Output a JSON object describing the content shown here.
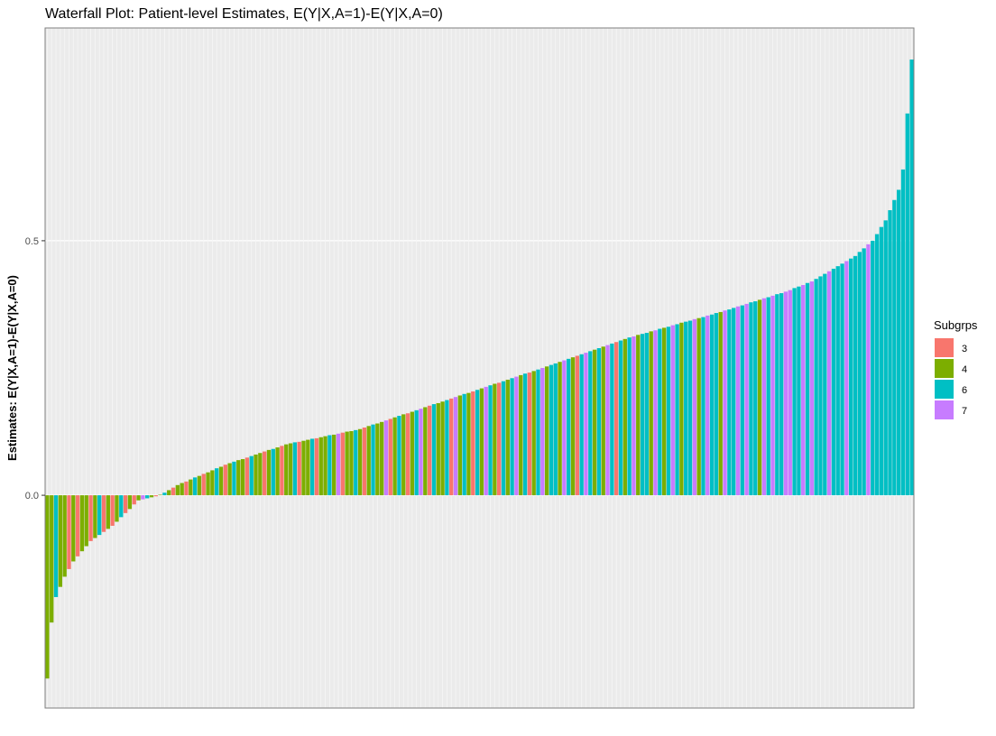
{
  "chart_data": {
    "type": "bar",
    "title": "Waterfall Plot: Patient-level Estimates, E(Y|X,A=1)-E(Y|X,A=0)",
    "xlabel": "",
    "ylabel": "Estimates: E(Y|X,A=1)-E(Y|X,A=0)",
    "ylim": [
      -0.418,
      0.918
    ],
    "yticks": [
      0.0,
      0.5
    ],
    "ytick_labels": [
      "0.0",
      "0.5"
    ],
    "grid": true,
    "legend": {
      "title": "Subgrps",
      "placement": "right",
      "entries": [
        "3",
        "4",
        "6",
        "7"
      ]
    },
    "colors": {
      "3": "#F8766D",
      "4": "#7CAE00",
      "6": "#00BFC4",
      "7": "#C77CFF"
    },
    "values": [
      -0.36,
      -0.25,
      -0.2,
      -0.18,
      -0.16,
      -0.145,
      -0.13,
      -0.12,
      -0.11,
      -0.1,
      -0.09,
      -0.084,
      -0.078,
      -0.072,
      -0.066,
      -0.06,
      -0.052,
      -0.043,
      -0.035,
      -0.027,
      -0.018,
      -0.01,
      -0.008,
      -0.006,
      -0.004,
      -0.002,
      0.001,
      0.005,
      0.01,
      0.015,
      0.02,
      0.024,
      0.027,
      0.031,
      0.035,
      0.038,
      0.042,
      0.045,
      0.049,
      0.053,
      0.056,
      0.06,
      0.063,
      0.066,
      0.069,
      0.071,
      0.074,
      0.077,
      0.08,
      0.083,
      0.086,
      0.089,
      0.091,
      0.094,
      0.097,
      0.1,
      0.102,
      0.104,
      0.105,
      0.107,
      0.109,
      0.111,
      0.112,
      0.114,
      0.116,
      0.118,
      0.119,
      0.121,
      0.123,
      0.125,
      0.126,
      0.128,
      0.13,
      0.133,
      0.136,
      0.139,
      0.141,
      0.144,
      0.147,
      0.15,
      0.153,
      0.156,
      0.159,
      0.161,
      0.164,
      0.167,
      0.17,
      0.173,
      0.176,
      0.179,
      0.181,
      0.184,
      0.187,
      0.19,
      0.193,
      0.196,
      0.199,
      0.201,
      0.204,
      0.207,
      0.21,
      0.213,
      0.216,
      0.219,
      0.221,
      0.224,
      0.227,
      0.23,
      0.233,
      0.236,
      0.239,
      0.241,
      0.244,
      0.247,
      0.25,
      0.253,
      0.256,
      0.259,
      0.262,
      0.265,
      0.268,
      0.271,
      0.274,
      0.277,
      0.28,
      0.283,
      0.286,
      0.289,
      0.292,
      0.295,
      0.298,
      0.301,
      0.304,
      0.307,
      0.31,
      0.312,
      0.315,
      0.317,
      0.319,
      0.322,
      0.324,
      0.327,
      0.329,
      0.331,
      0.334,
      0.336,
      0.339,
      0.341,
      0.343,
      0.346,
      0.348,
      0.35,
      0.353,
      0.355,
      0.358,
      0.36,
      0.363,
      0.365,
      0.368,
      0.371,
      0.373,
      0.376,
      0.379,
      0.381,
      0.384,
      0.387,
      0.389,
      0.392,
      0.395,
      0.397,
      0.4,
      0.403,
      0.407,
      0.41,
      0.413,
      0.417,
      0.42,
      0.425,
      0.43,
      0.435,
      0.44,
      0.445,
      0.45,
      0.455,
      0.46,
      0.465,
      0.47,
      0.478,
      0.485,
      0.493,
      0.5,
      0.513,
      0.527,
      0.54,
      0.56,
      0.58,
      0.6,
      0.64,
      0.75,
      0.856
    ],
    "groups": [
      4,
      4,
      6,
      4,
      4,
      3,
      4,
      3,
      4,
      4,
      3,
      4,
      6,
      3,
      4,
      3,
      4,
      6,
      3,
      4,
      3,
      4,
      7,
      6,
      4,
      3,
      4,
      6,
      4,
      3,
      4,
      4,
      3,
      4,
      6,
      4,
      3,
      4,
      4,
      6,
      4,
      3,
      4,
      6,
      4,
      4,
      3,
      6,
      4,
      4,
      3,
      4,
      6,
      4,
      3,
      4,
      4,
      6,
      3,
      4,
      4,
      6,
      3,
      4,
      4,
      6,
      4,
      7,
      3,
      4,
      4,
      6,
      4,
      3,
      4,
      6,
      4,
      4,
      7,
      3,
      4,
      6,
      4,
      3,
      4,
      6,
      7,
      4,
      3,
      6,
      4,
      4,
      6,
      3,
      7,
      4,
      6,
      4,
      3,
      6,
      4,
      7,
      6,
      4,
      3,
      6,
      4,
      6,
      7,
      4,
      6,
      3,
      4,
      6,
      7,
      4,
      6,
      6,
      4,
      7,
      6,
      4,
      3,
      6,
      7,
      6,
      4,
      6,
      4,
      7,
      6,
      3,
      6,
      4,
      6,
      7,
      4,
      6,
      6,
      4,
      7,
      6,
      4,
      6,
      7,
      6,
      4,
      6,
      6,
      7,
      4,
      6,
      7,
      6,
      6,
      4,
      7,
      6,
      6,
      7,
      6,
      7,
      6,
      6,
      4,
      7,
      6,
      7,
      6,
      6,
      7,
      7,
      6,
      6,
      7,
      6,
      7,
      6,
      6,
      6,
      7,
      6,
      6,
      6,
      7,
      6,
      6,
      6,
      6,
      7,
      6,
      6,
      6,
      6,
      6,
      6,
      6,
      6,
      6,
      6
    ]
  }
}
